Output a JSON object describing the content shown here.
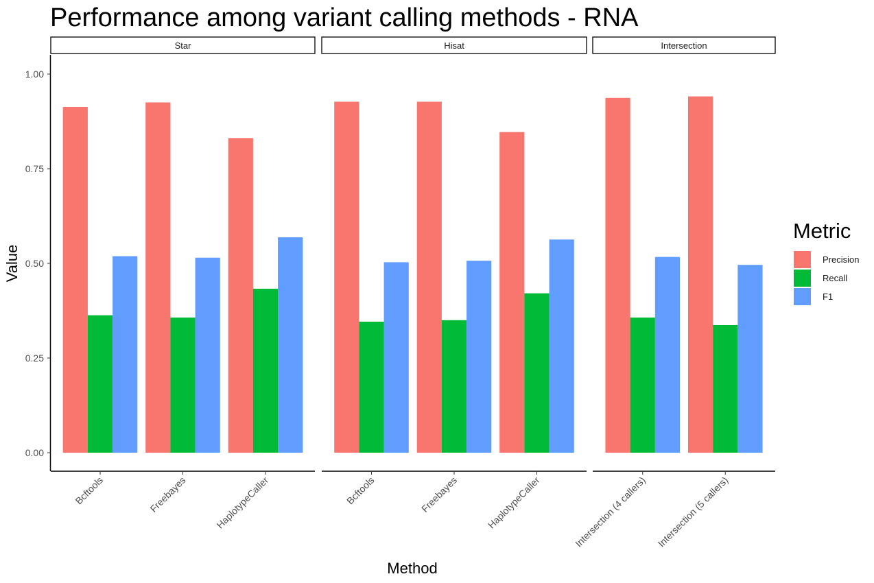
{
  "chart_data": {
    "type": "bar",
    "title": "Performance among variant calling methods - RNA",
    "xlabel": "Method",
    "ylabel": "Value",
    "ylim": [
      0,
      1.05
    ],
    "yticks": [
      "0.00",
      "0.25",
      "0.50",
      "0.75",
      "1.00"
    ],
    "ytick_values": [
      0,
      0.25,
      0.5,
      0.75,
      1.0
    ],
    "grid": false,
    "legend": {
      "title": "Metric",
      "placement": "right",
      "entries": [
        "Precision",
        "Recall",
        "F1"
      ]
    },
    "colors": {
      "Precision": "#F8766D",
      "Recall": "#00BA38",
      "F1": "#619CFF"
    },
    "facets": [
      {
        "name": "Star",
        "categories": [
          "Bcftools",
          "Freebayes",
          "HaplotypeCaller"
        ],
        "series": [
          {
            "name": "Precision",
            "values": [
              0.913,
              0.925,
              0.831
            ]
          },
          {
            "name": "Recall",
            "values": [
              0.363,
              0.357,
              0.433
            ]
          },
          {
            "name": "F1",
            "values": [
              0.519,
              0.515,
              0.569
            ]
          }
        ]
      },
      {
        "name": "Hisat",
        "categories": [
          "Bcftools",
          "Freebayes",
          "HaplotypeCaller"
        ],
        "series": [
          {
            "name": "Precision",
            "values": [
              0.927,
              0.927,
              0.847
            ]
          },
          {
            "name": "Recall",
            "values": [
              0.346,
              0.35,
              0.421
            ]
          },
          {
            "name": "F1",
            "values": [
              0.503,
              0.507,
              0.563
            ]
          }
        ]
      },
      {
        "name": "Intersection",
        "categories": [
          "Intersection (4 callers)",
          "Intersection (5 callers)"
        ],
        "series": [
          {
            "name": "Precision",
            "values": [
              0.937,
              0.941
            ]
          },
          {
            "name": "Recall",
            "values": [
              0.357,
              0.337
            ]
          },
          {
            "name": "F1",
            "values": [
              0.517,
              0.496
            ]
          }
        ]
      }
    ]
  }
}
